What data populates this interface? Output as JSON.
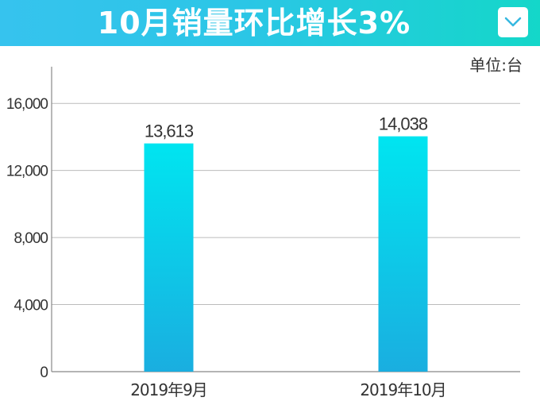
{
  "header": {
    "title": "10月销量环比增长3%",
    "dropdown_icon": "chevron-down-icon"
  },
  "colors": {
    "header_start": "#36c3ee",
    "header_end": "#14d7c9",
    "bar_top": "#00e5f0",
    "bar_bottom": "#1aaee0",
    "grid": "#bbbbbb",
    "text": "#333333"
  },
  "chart_data": {
    "type": "bar",
    "title": "",
    "xlabel": "",
    "ylabel": "",
    "unit_label": "单位:台",
    "categories": [
      "2019年9月",
      "2019年10月"
    ],
    "values": [
      13613,
      14038
    ],
    "value_labels": [
      "13,613",
      "14,038"
    ],
    "ylim": [
      0,
      18000
    ],
    "y_ticks": [
      0,
      4000,
      8000,
      12000,
      16000
    ],
    "y_tick_labels": [
      "0",
      "4,000",
      "8,000",
      "12,000",
      "16,000"
    ],
    "grid": true,
    "legend": "none"
  }
}
